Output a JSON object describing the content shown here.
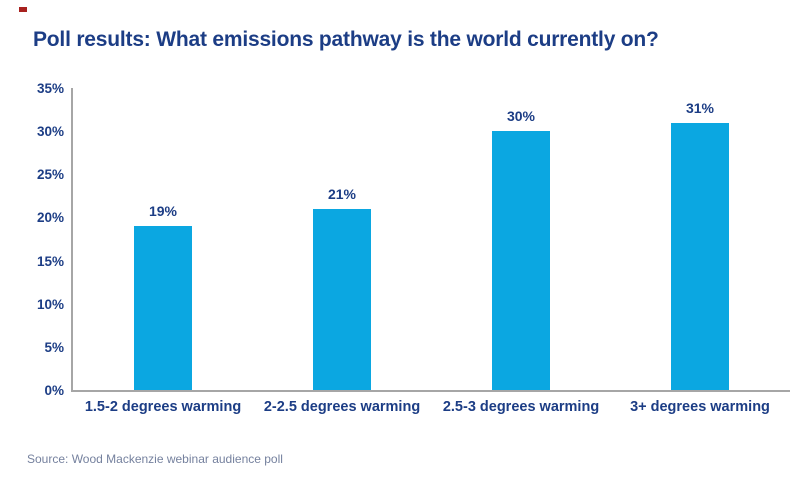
{
  "page": {
    "title": "Poll results: What emissions pathway is the world currently on?",
    "source_note": "Source: Wood Mackenzie webinar audience poll"
  },
  "colors": {
    "title_navy": "#1c3d85",
    "label_navy": "#1c3d85",
    "bar_cyan": "#0ba7e1",
    "axis_gray": "#a6a6a6",
    "source_gray": "#75819e",
    "logo_mark_red": "#a8211f",
    "background": "#ffffff"
  },
  "chart_data": {
    "type": "bar",
    "title": "Poll results: What emissions pathway is the world currently on?",
    "categories": [
      "1.5-2 degrees warming",
      "2-2.5 degrees warming",
      "2.5-3 degrees warming",
      "3+ degrees warming"
    ],
    "values": [
      19,
      21,
      30,
      31
    ],
    "value_labels": [
      "19%",
      "21%",
      "30%",
      "31%"
    ],
    "xlabel": "",
    "ylabel": "",
    "ylim": [
      0,
      35
    ],
    "ytick_step": 5,
    "ytick_labels": [
      "0%",
      "5%",
      "10%",
      "15%",
      "20%",
      "25%",
      "30%",
      "35%"
    ],
    "grid": "off",
    "legend": "none",
    "source": "Source: Wood Mackenzie webinar audience poll"
  }
}
